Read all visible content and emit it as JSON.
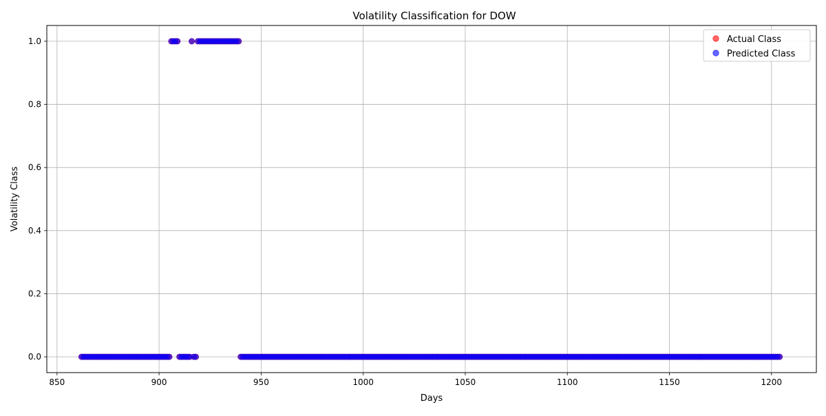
{
  "chart_data": {
    "type": "scatter",
    "title": "Volatility Classification for DOW",
    "xlabel": "Days",
    "ylabel": "Volatility Class",
    "xlim": [
      845,
      1222
    ],
    "ylim": [
      -0.05,
      1.05
    ],
    "xticks": [
      850,
      900,
      950,
      1000,
      1050,
      1100,
      1150,
      1200
    ],
    "yticks": [
      0.0,
      0.2,
      0.4,
      0.6,
      0.8,
      1.0
    ],
    "xtick_labels": [
      "850",
      "900",
      "950",
      "1000",
      "1050",
      "1100",
      "1150",
      "1200"
    ],
    "ytick_labels": [
      "0.0",
      "0.2",
      "0.4",
      "0.6",
      "0.8",
      "1.0"
    ],
    "grid": true,
    "legend_position": "top-right",
    "day_range": [
      862,
      1204
    ],
    "series": [
      {
        "name": "Actual Class",
        "color": "#ff0000",
        "alpha": 0.6,
        "class_one_ranges": [
          [
            906,
            909
          ],
          [
            916,
            916
          ],
          [
            919,
            939
          ]
        ]
      },
      {
        "name": "Predicted Class",
        "color": "#0000ff",
        "alpha": 0.6,
        "class_one_ranges": [
          [
            906,
            909
          ],
          [
            916,
            916
          ],
          [
            919,
            939
          ]
        ]
      }
    ]
  }
}
